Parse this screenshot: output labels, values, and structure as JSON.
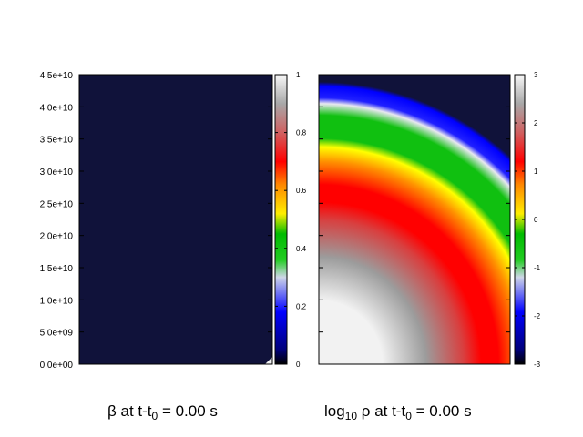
{
  "chart_data": [
    {
      "type": "heatmap",
      "panel": "left",
      "caption": {
        "symbol": "β",
        "at": "at t-t",
        "sub": "0",
        "eq": "=  0.00 s"
      },
      "yticks": [
        "0.0e+00",
        "5.0e+09",
        "1.0e+10",
        "1.5e+10",
        "2.0e+10",
        "2.5e+10",
        "3.0e+10",
        "3.5e+10",
        "4.0e+10",
        "4.5e+10"
      ],
      "ylim": [
        0,
        45000000000.0
      ],
      "colorbar": {
        "ticks": [
          "0",
          "0.2",
          "0.4",
          "0.6",
          "0.8",
          "1"
        ],
        "range": [
          0,
          1
        ]
      },
      "field": {
        "background_value": 0,
        "corner_value": 0.9,
        "description": "uniform zero except tiny bright patch at lower-right"
      }
    },
    {
      "type": "heatmap",
      "panel": "right",
      "caption": {
        "pre": "log",
        "pre_sub": "10",
        "symbol": "ρ",
        "at": "at t-t",
        "sub": "0",
        "eq": "=  0.00 s"
      },
      "colorbar": {
        "ticks": [
          "-3",
          "-2",
          "-1",
          "0",
          "1",
          "2",
          "3"
        ],
        "range": [
          -3,
          3
        ]
      },
      "field": {
        "profile": "radial from lower-left origin",
        "radius_units_fraction_of_height": [
          0,
          0.3,
          0.53,
          0.66,
          0.76,
          0.83,
          0.87
        ],
        "log_rho_values": [
          2.9,
          1.7,
          0.9,
          0.0,
          -1.0,
          -2.5,
          -3.0
        ]
      }
    }
  ],
  "colors": {
    "background": "#ffffff",
    "dark_fill": "#10123a",
    "palette": [
      "#000080",
      "#0000ff",
      "#ffffff",
      "#00ff00",
      "#ffff00",
      "#ff8000",
      "#ff0000",
      "#ffffff"
    ]
  }
}
